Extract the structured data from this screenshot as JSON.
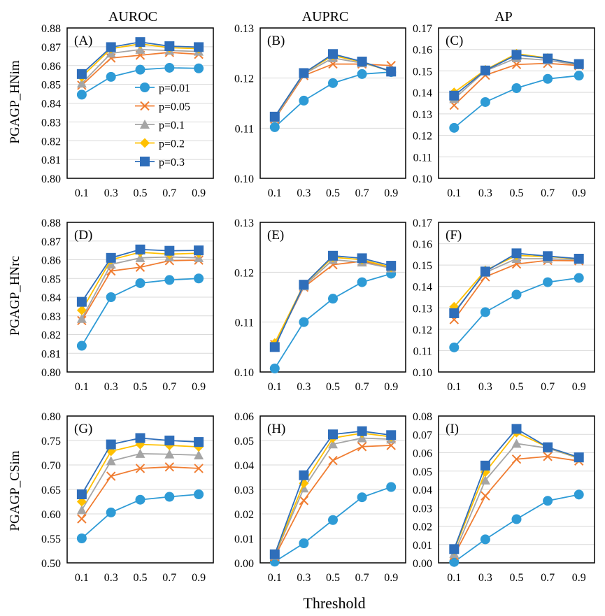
{
  "figure": {
    "col_titles": [
      "AUROC",
      "AUPRC",
      "AP"
    ],
    "row_labels": [
      "PGAGP_HNim",
      "PGAGP_HNrc",
      "PGAGP_CSim"
    ],
    "xlabel": "Threshold"
  },
  "series_styles": [
    {
      "name": "p=0.01",
      "color": "#2E9BD6",
      "marker": "circle"
    },
    {
      "name": "p=0.05",
      "color": "#F07D32",
      "marker": "x"
    },
    {
      "name": "p=0.1",
      "color": "#A5A5A5",
      "marker": "triangle"
    },
    {
      "name": "p=0.2",
      "color": "#FFC000",
      "marker": "diamond"
    },
    {
      "name": "p=0.3",
      "color": "#2F6EBA",
      "marker": "square"
    }
  ],
  "chart_data": [
    {
      "type": "line",
      "panel": "(A)",
      "x": [
        0.1,
        0.3,
        0.5,
        0.7,
        0.9
      ],
      "ylim": [
        0.8,
        0.88
      ],
      "yticks": [
        "0.80",
        "0.81",
        "0.82",
        "0.83",
        "0.84",
        "0.85",
        "0.86",
        "0.87",
        "0.88"
      ],
      "legend": true,
      "series": [
        {
          "name": "p=0.01",
          "values": [
            0.8445,
            0.854,
            0.8578,
            0.8588,
            0.8585
          ]
        },
        {
          "name": "p=0.05",
          "values": [
            0.8495,
            0.864,
            0.8655,
            0.867,
            0.866
          ]
        },
        {
          "name": "p=0.1",
          "values": [
            0.8505,
            0.8665,
            0.8685,
            0.868,
            0.8675
          ]
        },
        {
          "name": "p=0.2",
          "values": [
            0.854,
            0.869,
            0.8715,
            0.8695,
            0.869
          ]
        },
        {
          "name": "p=0.3",
          "values": [
            0.8555,
            0.8698,
            0.8725,
            0.8703,
            0.8698
          ]
        }
      ]
    },
    {
      "type": "line",
      "panel": "(B)",
      "x": [
        0.1,
        0.3,
        0.5,
        0.7,
        0.9
      ],
      "ylim": [
        0.1,
        0.13
      ],
      "yticks": [
        "0.10",
        "0.11",
        "0.12",
        "0.13"
      ],
      "legend": false,
      "series": [
        {
          "name": "p=0.01",
          "values": [
            0.1102,
            0.1155,
            0.119,
            0.1208,
            0.1212
          ]
        },
        {
          "name": "p=0.05",
          "values": [
            0.1118,
            0.1205,
            0.1228,
            0.1228,
            0.1225
          ]
        },
        {
          "name": "p=0.1",
          "values": [
            0.112,
            0.1208,
            0.124,
            0.123,
            0.1215
          ]
        },
        {
          "name": "p=0.2",
          "values": [
            0.1122,
            0.121,
            0.1245,
            0.1232,
            0.1213
          ]
        },
        {
          "name": "p=0.3",
          "values": [
            0.1123,
            0.121,
            0.1248,
            0.1233,
            0.1213
          ]
        }
      ]
    },
    {
      "type": "line",
      "panel": "(C)",
      "x": [
        0.1,
        0.3,
        0.5,
        0.7,
        0.9
      ],
      "ylim": [
        0.1,
        0.17
      ],
      "yticks": [
        "0.10",
        "0.11",
        "0.12",
        "0.13",
        "0.14",
        "0.15",
        "0.16",
        "0.17"
      ],
      "legend": false,
      "series": [
        {
          "name": "p=0.01",
          "values": [
            0.1235,
            0.1355,
            0.142,
            0.1463,
            0.1478
          ]
        },
        {
          "name": "p=0.05",
          "values": [
            0.134,
            0.148,
            0.153,
            0.1535,
            0.1525
          ]
        },
        {
          "name": "p=0.1",
          "values": [
            0.137,
            0.15,
            0.156,
            0.155,
            0.1528
          ]
        },
        {
          "name": "p=0.2",
          "values": [
            0.14,
            0.1505,
            0.158,
            0.156,
            0.153
          ]
        },
        {
          "name": "p=0.3",
          "values": [
            0.1385,
            0.1502,
            0.1575,
            0.1558,
            0.1532
          ]
        }
      ]
    },
    {
      "type": "line",
      "panel": "(D)",
      "x": [
        0.1,
        0.3,
        0.5,
        0.7,
        0.9
      ],
      "ylim": [
        0.8,
        0.88
      ],
      "yticks": [
        "0.80",
        "0.81",
        "0.82",
        "0.83",
        "0.84",
        "0.85",
        "0.86",
        "0.87",
        "0.88"
      ],
      "legend": false,
      "series": [
        {
          "name": "p=0.01",
          "values": [
            0.814,
            0.84,
            0.8475,
            0.8492,
            0.85
          ]
        },
        {
          "name": "p=0.05",
          "values": [
            0.8275,
            0.854,
            0.856,
            0.8595,
            0.8598
          ]
        },
        {
          "name": "p=0.1",
          "values": [
            0.8285,
            0.8575,
            0.861,
            0.8615,
            0.861
          ]
        },
        {
          "name": "p=0.2",
          "values": [
            0.833,
            0.86,
            0.864,
            0.863,
            0.8635
          ]
        },
        {
          "name": "p=0.3",
          "values": [
            0.8375,
            0.861,
            0.8655,
            0.8648,
            0.865
          ]
        }
      ]
    },
    {
      "type": "line",
      "panel": "(E)",
      "x": [
        0.1,
        0.3,
        0.5,
        0.7,
        0.9
      ],
      "ylim": [
        0.1,
        0.13
      ],
      "yticks": [
        "0.10",
        "0.11",
        "0.12",
        "0.13"
      ],
      "legend": false,
      "series": [
        {
          "name": "p=0.01",
          "values": [
            0.1007,
            0.11,
            0.1147,
            0.118,
            0.1197
          ]
        },
        {
          "name": "p=0.05",
          "values": [
            0.1055,
            0.117,
            0.1215,
            0.1222,
            0.121
          ]
        },
        {
          "name": "p=0.1",
          "values": [
            0.1055,
            0.1172,
            0.1225,
            0.122,
            0.1208
          ]
        },
        {
          "name": "p=0.2",
          "values": [
            0.1058,
            0.1175,
            0.123,
            0.1225,
            0.121
          ]
        },
        {
          "name": "p=0.3",
          "values": [
            0.105,
            0.1175,
            0.1233,
            0.1228,
            0.1213
          ]
        }
      ]
    },
    {
      "type": "line",
      "panel": "(F)",
      "x": [
        0.1,
        0.3,
        0.5,
        0.7,
        0.9
      ],
      "ylim": [
        0.1,
        0.17
      ],
      "yticks": [
        "0.10",
        "0.11",
        "0.12",
        "0.13",
        "0.14",
        "0.15",
        "0.16",
        "0.17"
      ],
      "legend": false,
      "series": [
        {
          "name": "p=0.01",
          "values": [
            0.1115,
            0.128,
            0.1362,
            0.142,
            0.144
          ]
        },
        {
          "name": "p=0.05",
          "values": [
            0.1245,
            0.1445,
            0.1505,
            0.1522,
            0.152
          ]
        },
        {
          "name": "p=0.1",
          "values": [
            0.128,
            0.1465,
            0.153,
            0.153,
            0.1525
          ]
        },
        {
          "name": "p=0.2",
          "values": [
            0.1305,
            0.1475,
            0.1545,
            0.154,
            0.1528
          ]
        },
        {
          "name": "p=0.3",
          "values": [
            0.1275,
            0.147,
            0.1555,
            0.1542,
            0.153
          ]
        }
      ]
    },
    {
      "type": "line",
      "panel": "(G)",
      "x": [
        0.1,
        0.3,
        0.5,
        0.7,
        0.9
      ],
      "ylim": [
        0.5,
        0.8
      ],
      "yticks": [
        "0.50",
        "0.55",
        "0.60",
        "0.65",
        "0.70",
        "0.75",
        "0.80"
      ],
      "legend": false,
      "series": [
        {
          "name": "p=0.01",
          "values": [
            0.55,
            0.603,
            0.629,
            0.635,
            0.64
          ]
        },
        {
          "name": "p=0.05",
          "values": [
            0.59,
            0.677,
            0.693,
            0.696,
            0.693
          ]
        },
        {
          "name": "p=0.1",
          "values": [
            0.608,
            0.708,
            0.723,
            0.722,
            0.72
          ]
        },
        {
          "name": "p=0.2",
          "values": [
            0.625,
            0.728,
            0.742,
            0.74,
            0.737
          ]
        },
        {
          "name": "p=0.3",
          "values": [
            0.64,
            0.742,
            0.755,
            0.75,
            0.747
          ]
        }
      ]
    },
    {
      "type": "line",
      "panel": "(H)",
      "x": [
        0.1,
        0.3,
        0.5,
        0.7,
        0.9
      ],
      "ylim": [
        0.0,
        0.06
      ],
      "yticks": [
        "0.00",
        "0.01",
        "0.02",
        "0.03",
        "0.04",
        "0.05",
        "0.06"
      ],
      "legend": false,
      "series": [
        {
          "name": "p=0.01",
          "values": [
            0.0005,
            0.008,
            0.0175,
            0.0268,
            0.031
          ]
        },
        {
          "name": "p=0.05",
          "values": [
            0.0025,
            0.0255,
            0.0418,
            0.0475,
            0.048
          ]
        },
        {
          "name": "p=0.1",
          "values": [
            0.003,
            0.0305,
            0.0485,
            0.051,
            0.0505
          ]
        },
        {
          "name": "p=0.2",
          "values": [
            0.0035,
            0.0325,
            0.051,
            0.053,
            0.0515
          ]
        },
        {
          "name": "p=0.3",
          "values": [
            0.0035,
            0.0358,
            0.0525,
            0.0538,
            0.0522
          ]
        }
      ]
    },
    {
      "type": "line",
      "panel": "(I)",
      "x": [
        0.1,
        0.3,
        0.5,
        0.7,
        0.9
      ],
      "ylim": [
        0.0,
        0.08
      ],
      "yticks": [
        "0.00",
        "0.01",
        "0.02",
        "0.03",
        "0.04",
        "0.05",
        "0.06",
        "0.07",
        "0.08"
      ],
      "legend": false,
      "series": [
        {
          "name": "p=0.01",
          "values": [
            0.0005,
            0.0128,
            0.0238,
            0.0338,
            0.0372
          ]
        },
        {
          "name": "p=0.05",
          "values": [
            0.004,
            0.0365,
            0.0565,
            0.058,
            0.0555
          ]
        },
        {
          "name": "p=0.1",
          "values": [
            0.005,
            0.045,
            0.065,
            0.0625,
            0.057
          ]
        },
        {
          "name": "p=0.2",
          "values": [
            0.007,
            0.0495,
            0.071,
            0.063,
            0.0572
          ]
        },
        {
          "name": "p=0.3",
          "values": [
            0.0075,
            0.053,
            0.073,
            0.063,
            0.0575
          ]
        }
      ]
    }
  ]
}
